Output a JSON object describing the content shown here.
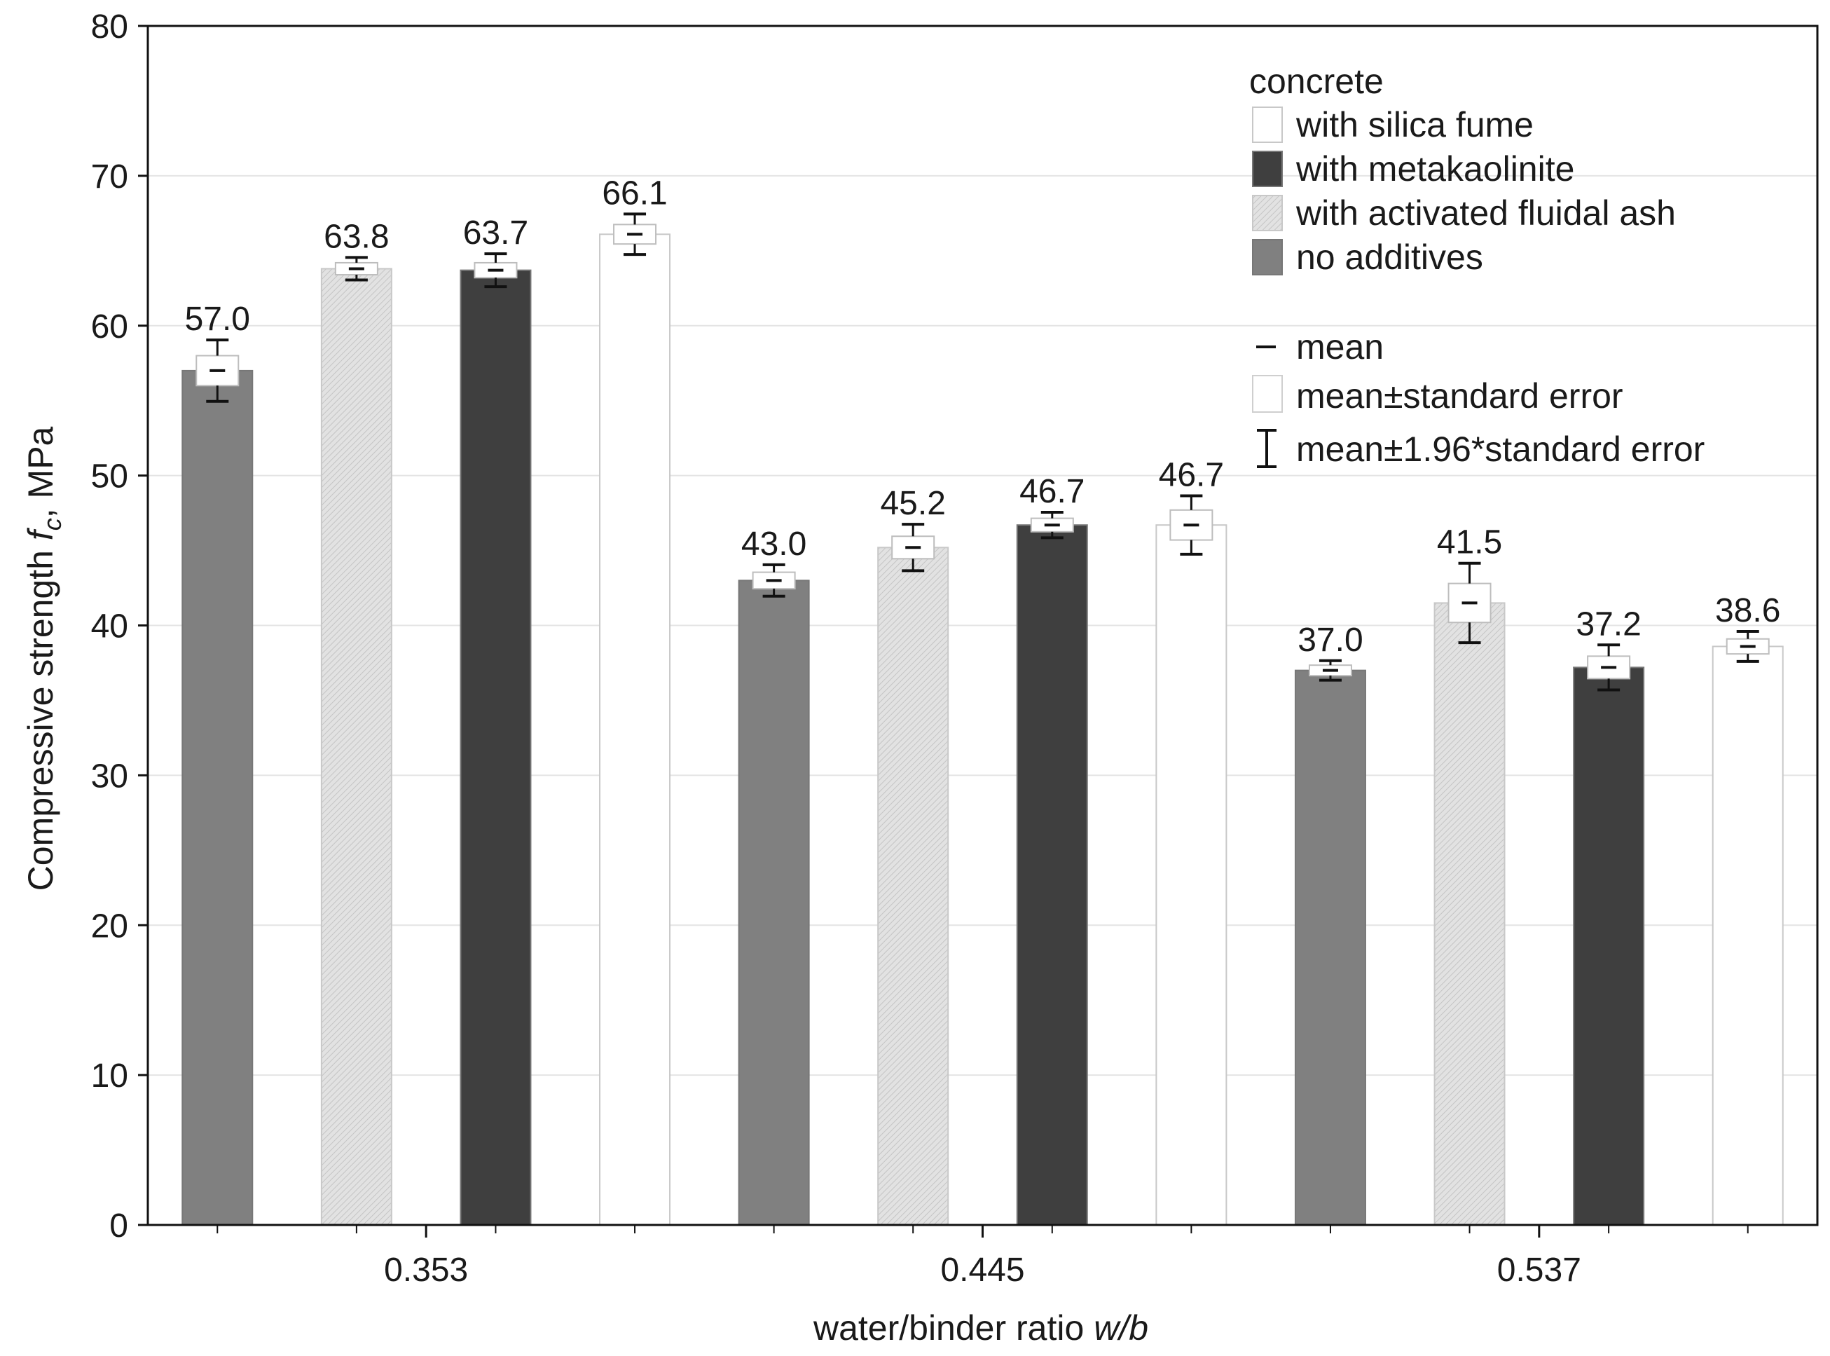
{
  "chart_data": {
    "type": "bar",
    "xlabel": "water/binder ratio",
    "xlabel_symbol": "w/b",
    "ylabel": "Compressive strength",
    "ylabel_symbol": "f",
    "ylabel_subscript": "c",
    "ylabel_unit": ", MPa",
    "ylim": [
      0,
      80
    ],
    "yticks": [
      0,
      10,
      20,
      30,
      40,
      50,
      60,
      70,
      80
    ],
    "grid": true,
    "legend_position": "top-right",
    "legend_title": "concrete",
    "categories": [
      "0.353",
      "0.445",
      "0.537"
    ],
    "series": [
      {
        "name": "no additives",
        "color": "#808080",
        "values": [
          57.0,
          43.0,
          37.0
        ],
        "labels": [
          "57.0",
          "43.0",
          "37.0"
        ],
        "se": [
          1.0,
          0.55,
          0.35
        ],
        "ci": [
          2.05,
          1.05,
          0.65
        ]
      },
      {
        "name": "with activated fluidal ash",
        "color": "#dedede",
        "values": [
          63.8,
          45.2,
          41.5
        ],
        "labels": [
          "63.8",
          "45.2",
          "41.5"
        ],
        "se": [
          0.4,
          0.75,
          1.3
        ],
        "ci": [
          0.75,
          1.55,
          2.65
        ]
      },
      {
        "name": "with metakaolinite",
        "color": "#3f3f3f",
        "values": [
          63.7,
          46.7,
          37.2
        ],
        "labels": [
          "63.7",
          "46.7",
          "37.2"
        ],
        "se": [
          0.5,
          0.45,
          0.75
        ],
        "ci": [
          1.1,
          0.85,
          1.5
        ]
      },
      {
        "name": "with silica fume",
        "color": "#ffffff",
        "values": [
          66.1,
          46.7,
          38.6
        ],
        "labels": [
          "66.1",
          "46.7",
          "38.6"
        ],
        "se": [
          0.65,
          1.0,
          0.5
        ],
        "ci": [
          1.35,
          1.95,
          1.0
        ]
      }
    ],
    "legend_entries": [
      {
        "label": "with silica fume",
        "color": "#ffffff"
      },
      {
        "label": "with metakaolinite",
        "color": "#3f3f3f"
      },
      {
        "label": "with activated fluidal ash",
        "color": "#dedede"
      },
      {
        "label": "no additives",
        "color": "#808080"
      }
    ],
    "stat_legend": {
      "mean": "mean",
      "se": "mean±standard error",
      "ci": "mean±1.96*standard error"
    }
  }
}
